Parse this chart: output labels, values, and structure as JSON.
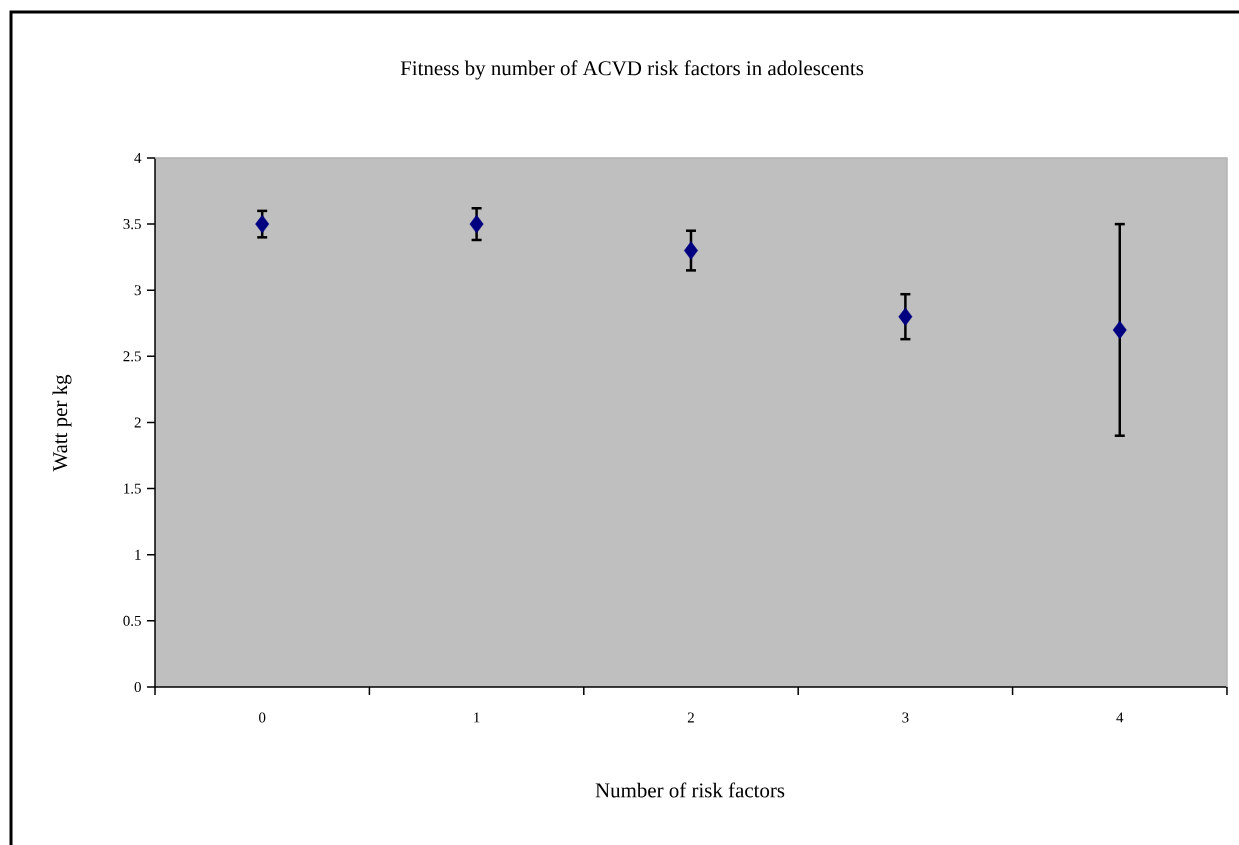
{
  "chart_data": {
    "type": "scatter",
    "title": "Fitness by number of ACVD risk factors in adolescents",
    "xlabel": "Number of risk factors",
    "ylabel": "Watt per kg",
    "categories": [
      "0",
      "1",
      "2",
      "3",
      "4"
    ],
    "values": [
      3.5,
      3.5,
      3.3,
      2.8,
      2.7
    ],
    "errors": [
      0.1,
      0.12,
      0.15,
      0.17,
      0.8
    ],
    "color": "#000080",
    "marker": "diamond",
    "ylim": [
      0,
      4
    ],
    "yticks": [
      0,
      0.5,
      1,
      1.5,
      2,
      2.5,
      3,
      3.5,
      4
    ]
  }
}
